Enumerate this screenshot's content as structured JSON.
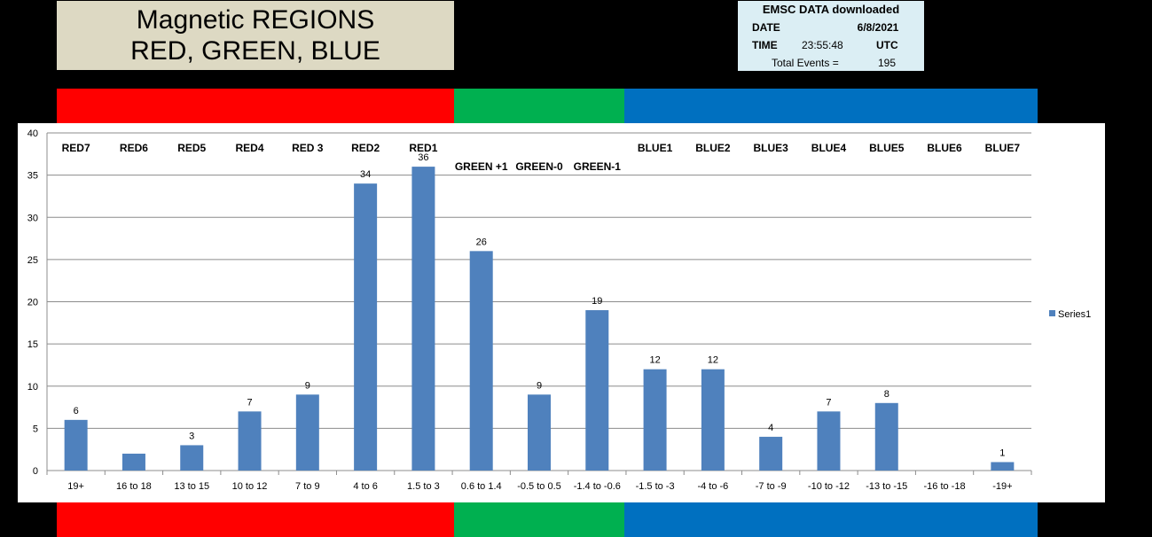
{
  "title": {
    "line1": "Magnetic REGIONS",
    "line2": "RED, GREEN, BLUE"
  },
  "info": {
    "header": "EMSC DATA downloaded",
    "date_label": "DATE",
    "date_value": "6/8/2021",
    "time_label": "TIME",
    "time_value": "23:55:48",
    "time_zone": "UTC",
    "total_label": "Total Events  =",
    "total_value": "195"
  },
  "colors": {
    "red": "#ff0000",
    "green": "#00b050",
    "blue": "#0070c0",
    "bar": "#4f81bd"
  },
  "chart_data": {
    "type": "bar",
    "categories": [
      "19+",
      "16 to 18",
      "13 to 15",
      "10 to 12",
      "7 to 9",
      "4 to 6",
      "1.5 to 3",
      "0.6 to 1.4",
      "-0.5 to 0.5",
      "-1.4 to -0.6",
      "-1.5 to -3",
      "-4 to -6",
      "-7 to -9",
      "-10 to -12",
      "-13 to -15",
      "-16 to -18",
      "-19+"
    ],
    "series": [
      {
        "name": "Series1",
        "values": [
          6,
          2,
          3,
          7,
          9,
          34,
          36,
          26,
          9,
          19,
          12,
          12,
          4,
          7,
          8,
          0,
          1
        ]
      }
    ],
    "data_labels": [
      "6",
      "",
      "3",
      "7",
      "9",
      "34",
      "36",
      "26",
      "9",
      "19",
      "12",
      "12",
      "4",
      "7",
      "8",
      "",
      "1"
    ],
    "region_labels": [
      {
        "text": "RED7",
        "cat": 0
      },
      {
        "text": "RED6",
        "cat": 1
      },
      {
        "text": "RED5",
        "cat": 2
      },
      {
        "text": "RED4",
        "cat": 3
      },
      {
        "text": "RED 3",
        "cat": 4
      },
      {
        "text": "RED2",
        "cat": 5
      },
      {
        "text": "RED1",
        "cat": 6
      },
      {
        "text": "GREEN +1",
        "cat": 7
      },
      {
        "text": "GREEN-0",
        "cat": 8
      },
      {
        "text": "GREEN-1",
        "cat": 9
      },
      {
        "text": "BLUE1",
        "cat": 10
      },
      {
        "text": "BLUE2",
        "cat": 11
      },
      {
        "text": "BLUE3",
        "cat": 12
      },
      {
        "text": "BLUE4",
        "cat": 13
      },
      {
        "text": "BLUE5",
        "cat": 14
      },
      {
        "text": "BLUE6",
        "cat": 15
      },
      {
        "text": "BLUE7",
        "cat": 16
      }
    ],
    "ylim": [
      0,
      40
    ],
    "yticks": [
      0,
      5,
      10,
      15,
      20,
      25,
      30,
      35,
      40
    ],
    "grid": true,
    "legend": "right"
  }
}
